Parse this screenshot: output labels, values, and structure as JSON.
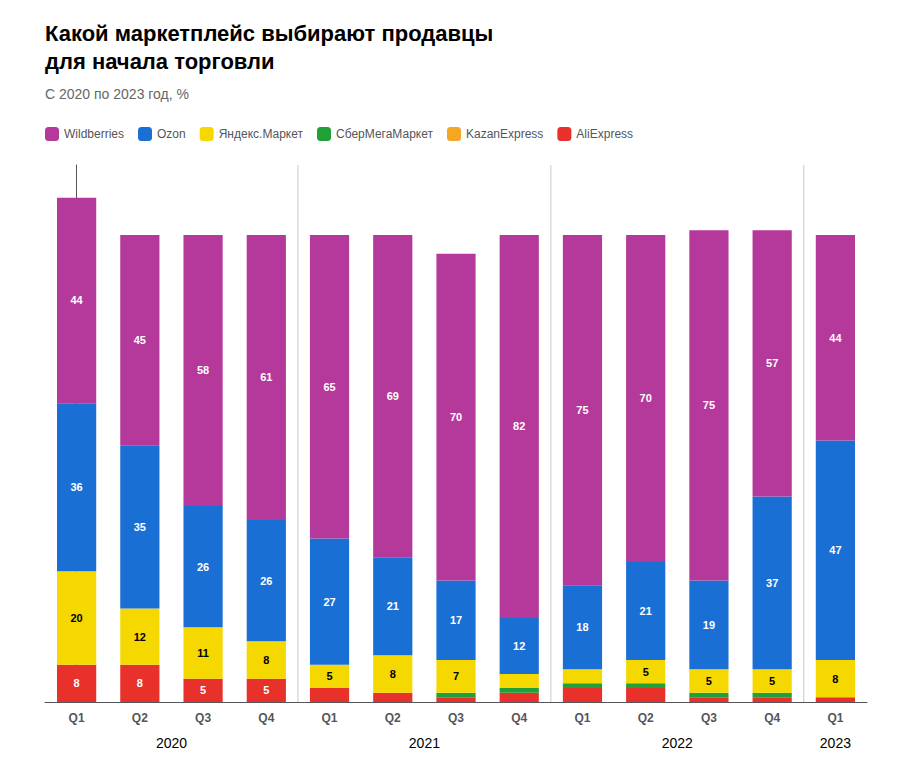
{
  "chart_data": {
    "type": "bar",
    "title": "Какой маркетплейс выбирают продавцы\nдля начала торговли",
    "subtitle": "С 2020 по 2023 год, %",
    "categories": [
      "Q1",
      "Q2",
      "Q3",
      "Q4",
      "Q1",
      "Q2",
      "Q3",
      "Q4",
      "Q1",
      "Q2",
      "Q3",
      "Q4",
      "Q1"
    ],
    "category_groups": [
      "2020",
      "2020",
      "2020",
      "2020",
      "2021",
      "2021",
      "2021",
      "2021",
      "2022",
      "2022",
      "2022",
      "2022",
      "2023"
    ],
    "series": [
      {
        "name": "AliExpress",
        "color": "#e8312a",
        "values": [
          8,
          8,
          5,
          5,
          3,
          2,
          1,
          2,
          3,
          3,
          1,
          1,
          1
        ],
        "value_labels": [
          "8",
          "8",
          "5",
          "5",
          null,
          null,
          null,
          null,
          null,
          null,
          null,
          null,
          null
        ]
      },
      {
        "name": "KazanExpress",
        "color": "#f5a623",
        "values": [
          0,
          0,
          0,
          0,
          0,
          0,
          0,
          0,
          0,
          0,
          0,
          0,
          0
        ],
        "value_labels": [
          null,
          null,
          null,
          null,
          null,
          null,
          null,
          null,
          null,
          null,
          null,
          null,
          null
        ]
      },
      {
        "name": "СберМегаМаркет",
        "color": "#21a038",
        "values": [
          0,
          0,
          0,
          0,
          0,
          0,
          1,
          1,
          1,
          1,
          1,
          1,
          0
        ],
        "value_labels": [
          null,
          null,
          null,
          null,
          null,
          null,
          null,
          null,
          null,
          null,
          null,
          null,
          null
        ]
      },
      {
        "name": "Яндекс.Маркет",
        "color": "#f5d800",
        "values": [
          20,
          12,
          11,
          8,
          5,
          8,
          7,
          3,
          3,
          5,
          5,
          5,
          8
        ],
        "value_labels": [
          "20",
          "12",
          "11",
          "8",
          "5",
          "8",
          "7",
          null,
          null,
          "5",
          "5",
          "5",
          "8"
        ]
      },
      {
        "name": "Ozon",
        "color": "#1a6fd4",
        "values": [
          36,
          35,
          26,
          26,
          27,
          21,
          17,
          12,
          18,
          21,
          19,
          37,
          47
        ],
        "value_labels": [
          "36",
          "35",
          "26",
          "26",
          "27",
          "21",
          "17",
          "12",
          "18",
          "21",
          "19",
          "37",
          "47"
        ]
      },
      {
        "name": "Wildberries",
        "color": "#b5399a",
        "values": [
          44,
          45,
          58,
          61,
          65,
          69,
          70,
          82,
          75,
          70,
          75,
          57,
          44
        ],
        "value_labels": [
          "44",
          "45",
          "58",
          "61",
          "65",
          "69",
          "70",
          "82",
          "75",
          "70",
          "75",
          "57",
          "44"
        ]
      }
    ],
    "stacked": true,
    "data_labels": true,
    "ylim": [
      0,
      115
    ],
    "tick_labels": "x",
    "grid": false,
    "legend": "upper left"
  }
}
